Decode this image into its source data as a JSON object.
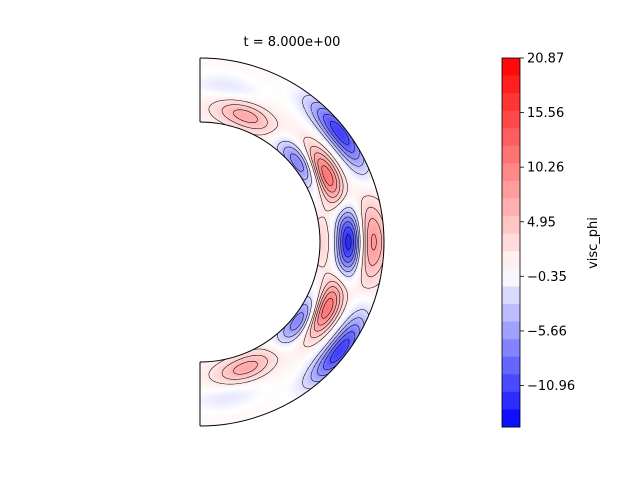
{
  "chart_data": {
    "type": "heatmap",
    "subtype": "filled-contour-meridional-half-shell",
    "title": "t = 8.000e+00",
    "colorbar": {
      "label": "visc_phi",
      "min": -15.0,
      "max": 20.87,
      "tick_values": [
        20.87,
        15.56,
        10.26,
        4.95,
        -0.35,
        -5.66,
        -10.96
      ],
      "tick_labels": [
        "20.87",
        "15.56",
        "10.26",
        "4.95",
        "−0.35",
        "−5.66",
        "−10.96"
      ],
      "colormap": "bwr",
      "negative_color": "#0000ff",
      "zero_color": "#ffffff",
      "positive_color": "#ff0000"
    },
    "features": [
      {
        "name": "equatorial-negative-core",
        "colat_deg": 90,
        "r_frac": 0.45,
        "value": -14.0
      },
      {
        "name": "north-positive-lobe",
        "colat_deg": 62,
        "r_frac": 0.35,
        "value": 12.0
      },
      {
        "name": "south-positive-lobe",
        "colat_deg": 118,
        "r_frac": 0.35,
        "value": 12.0
      },
      {
        "name": "north-outer-negative-band",
        "colat_deg": 52,
        "r_frac": 0.9,
        "value": -12.0
      },
      {
        "name": "south-outer-negative-band",
        "colat_deg": 128,
        "r_frac": 0.9,
        "value": -12.0
      },
      {
        "name": "north-inner-negative-spot",
        "colat_deg": 52,
        "r_frac": 0.12,
        "value": -9.0
      },
      {
        "name": "south-inner-negative-spot",
        "colat_deg": 128,
        "r_frac": 0.12,
        "value": -9.0
      },
      {
        "name": "equatorial-inner-positive-sheath",
        "colat_deg": 90,
        "r_frac": 0.05,
        "value": 3.0
      },
      {
        "name": "equatorial-outer-positive-sheath",
        "colat_deg": 90,
        "r_frac": 0.92,
        "value": 3.0
      },
      {
        "name": "equatorial-small-positive-patch",
        "colat_deg": 90,
        "r_frac": 0.78,
        "value": 6.0
      },
      {
        "name": "north-polar-positive-blob",
        "colat_deg": 20,
        "r_frac": 0.22,
        "value": 6.5
      },
      {
        "name": "south-polar-positive-blob",
        "colat_deg": 160,
        "r_frac": 0.22,
        "value": 6.5
      },
      {
        "name": "north-polar-negative-blob",
        "colat_deg": 10,
        "r_frac": 0.6,
        "value": -2.0
      },
      {
        "name": "south-polar-negative-blob",
        "colat_deg": 170,
        "r_frac": 0.6,
        "value": -2.0
      }
    ]
  }
}
